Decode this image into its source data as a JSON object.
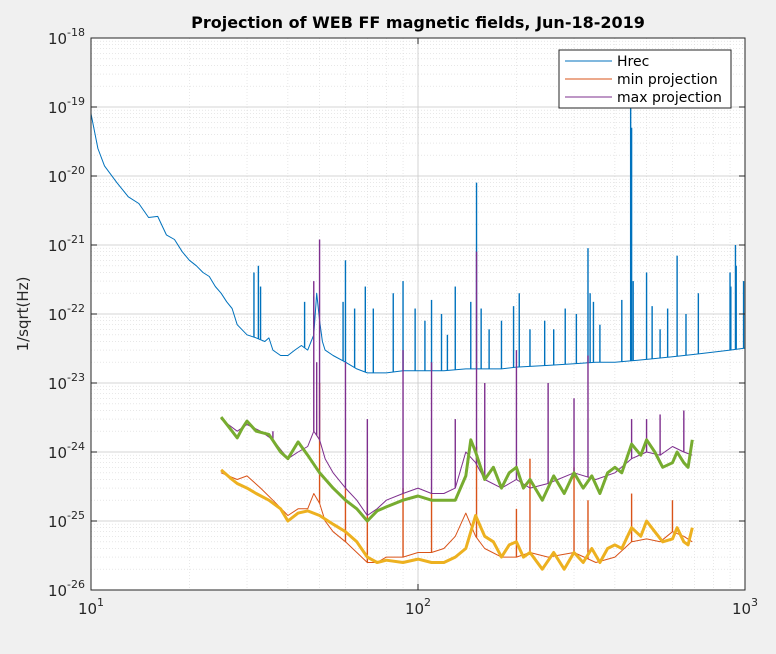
{
  "chart_data": {
    "type": "line",
    "title": "Projection of WEB FF magnetic fields, Jun-18-2019",
    "xlabel": "",
    "ylabel": "1/sqrt(Hz)",
    "x_scale": "log",
    "y_scale": "log",
    "xlim": [
      10,
      1000
    ],
    "ylim": [
      1e-26,
      1e-18
    ],
    "grid": true,
    "minor_grid": true,
    "legend_position": "top-right",
    "x_ticks": [
      {
        "value": 10,
        "base": "10",
        "exp": "1"
      },
      {
        "value": 100,
        "base": "10",
        "exp": "2"
      },
      {
        "value": 1000,
        "base": "10",
        "exp": "3"
      }
    ],
    "y_ticks": [
      {
        "value": 1e-18,
        "base": "10",
        "exp": "-18"
      },
      {
        "value": 1e-19,
        "base": "10",
        "exp": "-19"
      },
      {
        "value": 1e-20,
        "base": "10",
        "exp": "-20"
      },
      {
        "value": 1e-21,
        "base": "10",
        "exp": "-21"
      },
      {
        "value": 1e-22,
        "base": "10",
        "exp": "-22"
      },
      {
        "value": 1e-23,
        "base": "10",
        "exp": "-23"
      },
      {
        "value": 1e-24,
        "base": "10",
        "exp": "-24"
      },
      {
        "value": 1e-25,
        "base": "10",
        "exp": "-25"
      },
      {
        "value": 1e-26,
        "base": "10",
        "exp": "-26"
      }
    ],
    "series": [
      {
        "name": "Hrec",
        "color": "#0072bd",
        "width": 1,
        "in_legend": true,
        "x": [
          10,
          10.5,
          11,
          12,
          13,
          14,
          15,
          16,
          17,
          18,
          19,
          20,
          21,
          22,
          23,
          24,
          25,
          26,
          27,
          28,
          30,
          32,
          34,
          35,
          36,
          38,
          40,
          42,
          44,
          46,
          48,
          49,
          50,
          51,
          52,
          55,
          60,
          65,
          70,
          80,
          90,
          100,
          120,
          140,
          160,
          180,
          200,
          250,
          300,
          350,
          400,
          450,
          500,
          600,
          700,
          800,
          900,
          1000
        ],
        "y": [
          8e-20,
          2.5e-20,
          1.4e-20,
          8e-21,
          5e-21,
          4e-21,
          2.5e-21,
          2.6e-21,
          1.4e-21,
          1.2e-21,
          8e-22,
          6e-22,
          5e-22,
          4e-22,
          3.5e-22,
          2.5e-22,
          2e-22,
          1.5e-22,
          1.2e-22,
          7e-23,
          5e-23,
          4.5e-23,
          4e-23,
          4.5e-23,
          3e-23,
          2.5e-23,
          2.5e-23,
          3e-23,
          3.5e-23,
          3e-23,
          5e-23,
          2e-22,
          8e-23,
          4e-23,
          3e-23,
          2.5e-23,
          2e-23,
          1.6e-23,
          1.4e-23,
          1.4e-23,
          1.5e-23,
          1.5e-23,
          1.5e-23,
          1.6e-23,
          1.6e-23,
          1.6e-23,
          1.7e-23,
          1.8e-23,
          1.9e-23,
          2e-23,
          2e-23,
          2.1e-23,
          2.2e-23,
          2.4e-23,
          2.6e-23,
          2.8e-23,
          3e-23,
          3.2e-23
        ],
        "peaks": [
          [
            31.5,
            4e-22
          ],
          [
            32.5,
            5e-22
          ],
          [
            33,
            2.5e-22
          ],
          [
            45,
            1.5e-22
          ],
          [
            48,
            1.8e-22
          ],
          [
            59,
            1.5e-22
          ],
          [
            60,
            6e-22
          ],
          [
            64,
            1.2e-22
          ],
          [
            69,
            2.5e-22
          ],
          [
            73,
            1.2e-22
          ],
          [
            84,
            2e-22
          ],
          [
            90,
            3e-22
          ],
          [
            98,
            1.2e-22
          ],
          [
            105,
            8e-23
          ],
          [
            110,
            1.6e-22
          ],
          [
            118,
            1e-22
          ],
          [
            123,
            5e-23
          ],
          [
            130,
            2.5e-22
          ],
          [
            145,
            1.5e-22
          ],
          [
            151,
            8e-21
          ],
          [
            156,
            1.2e-22
          ],
          [
            165,
            6e-23
          ],
          [
            180,
            8e-23
          ],
          [
            196,
            1.3e-22
          ],
          [
            204,
            2e-22
          ],
          [
            220,
            6e-23
          ],
          [
            244,
            8e-23
          ],
          [
            260,
            6e-23
          ],
          [
            282,
            1.2e-22
          ],
          [
            305,
            1e-22
          ],
          [
            331,
            9e-22
          ],
          [
            336,
            2e-22
          ],
          [
            344,
            1.5e-22
          ],
          [
            360,
            7e-23
          ],
          [
            420,
            1.6e-22
          ],
          [
            447,
            1e-19
          ],
          [
            450,
            5e-20
          ],
          [
            455,
            3e-22
          ],
          [
            500,
            4e-22
          ],
          [
            520,
            1.3e-22
          ],
          [
            550,
            6e-23
          ],
          [
            580,
            1.2e-22
          ],
          [
            620,
            7e-22
          ],
          [
            660,
            1e-22
          ],
          [
            720,
            2e-22
          ],
          [
            900,
            4e-22
          ],
          [
            905,
            2.5e-22
          ],
          [
            935,
            1e-21
          ],
          [
            940,
            5e-22
          ],
          [
            990,
            3e-22
          ]
        ]
      },
      {
        "name": "min projection",
        "color": "#d95319",
        "width": 1,
        "in_legend": true,
        "x": [
          25,
          28,
          30,
          33,
          36,
          40,
          43,
          46,
          48,
          50,
          52,
          55,
          60,
          65,
          70,
          75,
          80,
          90,
          100,
          110,
          120,
          130,
          140,
          150,
          160,
          180,
          200,
          220,
          250,
          300,
          350,
          400,
          450,
          500,
          550,
          600,
          650,
          690
        ],
        "y": [
          5e-25,
          4e-25,
          4.5e-25,
          3e-25,
          2e-25,
          1.2e-25,
          1.5e-25,
          1.5e-25,
          2.5e-25,
          1.8e-25,
          1e-25,
          7e-26,
          5e-26,
          3.5e-26,
          2.5e-26,
          2.5e-26,
          3e-26,
          3e-26,
          3.5e-26,
          3.5e-26,
          4e-26,
          6e-26,
          1.3e-25,
          6e-26,
          4e-26,
          3e-26,
          3e-26,
          3.5e-26,
          3e-26,
          3.5e-26,
          2.5e-26,
          3e-26,
          5e-26,
          5.5e-26,
          5e-26,
          7e-26,
          6e-26,
          5e-26
        ],
        "peaks": [
          [
            50,
            1e-23
          ],
          [
            60,
            3e-25
          ],
          [
            70,
            4e-25
          ],
          [
            90,
            3e-25
          ],
          [
            110,
            2.5e-25
          ],
          [
            151,
            1.2e-24
          ],
          [
            200,
            1.5e-25
          ],
          [
            220,
            8e-25
          ],
          [
            300,
            6e-25
          ],
          [
            331,
            2e-25
          ],
          [
            450,
            2.5e-25
          ],
          [
            600,
            2e-25
          ]
        ]
      },
      {
        "name": "max projection",
        "color": "#7e2f8e",
        "width": 1,
        "in_legend": true,
        "x": [
          25,
          28,
          30,
          33,
          36,
          40,
          43,
          46,
          48,
          50,
          52,
          55,
          60,
          65,
          70,
          75,
          80,
          90,
          100,
          110,
          120,
          130,
          140,
          150,
          160,
          180,
          200,
          220,
          250,
          300,
          350,
          400,
          450,
          500,
          550,
          600,
          650,
          690
        ],
        "y": [
          3e-24,
          2e-24,
          2.5e-24,
          2e-24,
          1.5e-24,
          8e-25,
          1e-24,
          1.2e-24,
          2e-24,
          1.5e-24,
          8e-25,
          5e-25,
          3e-25,
          2e-25,
          1.2e-25,
          1.5e-25,
          2e-25,
          2.5e-25,
          3e-25,
          2.5e-25,
          2.5e-25,
          3e-25,
          1e-24,
          7e-25,
          4e-25,
          3e-25,
          4e-25,
          3e-25,
          3.5e-25,
          5e-25,
          4e-25,
          5e-25,
          8e-25,
          1e-24,
          9e-25,
          1.2e-24,
          1e-24,
          9e-25
        ],
        "peaks": [
          [
            36,
            2e-24
          ],
          [
            48,
            3e-22
          ],
          [
            49,
            2e-23
          ],
          [
            50,
            1.2e-21
          ],
          [
            60,
            2e-23
          ],
          [
            70,
            3e-24
          ],
          [
            90,
            3e-23
          ],
          [
            110,
            2e-23
          ],
          [
            130,
            3e-24
          ],
          [
            151,
            8e-22
          ],
          [
            160,
            1e-23
          ],
          [
            200,
            3e-23
          ],
          [
            250,
            1e-23
          ],
          [
            300,
            6e-24
          ],
          [
            331,
            2.5e-23
          ],
          [
            450,
            3e-24
          ],
          [
            500,
            3e-24
          ],
          [
            550,
            3.5e-24
          ],
          [
            650,
            4e-24
          ]
        ]
      },
      {
        "name": "",
        "color": "#77ac30",
        "width": 3,
        "in_legend": false,
        "x": [
          25,
          27,
          28,
          29,
          30,
          32,
          35,
          38,
          40,
          43,
          46,
          50,
          55,
          60,
          65,
          70,
          75,
          80,
          90,
          100,
          110,
          120,
          130,
          140,
          145,
          150,
          160,
          170,
          180,
          190,
          200,
          210,
          220,
          240,
          260,
          280,
          300,
          320,
          340,
          360,
          380,
          400,
          420,
          450,
          480,
          500,
          530,
          560,
          600,
          620,
          650,
          670,
          690
        ],
        "y": [
          3.2e-24,
          2e-24,
          1.6e-24,
          2.2e-24,
          2.8e-24,
          2e-24,
          1.8e-24,
          1e-24,
          8e-25,
          1.4e-24,
          9e-25,
          5e-25,
          3e-25,
          2e-25,
          1.5e-25,
          1e-25,
          1.4e-25,
          1.6e-25,
          2e-25,
          2.3e-25,
          2e-25,
          2e-25,
          2e-25,
          4.5e-25,
          1.5e-24,
          1e-24,
          4e-25,
          6e-25,
          3e-25,
          5e-25,
          6e-25,
          3e-25,
          4e-25,
          2e-25,
          4.5e-25,
          2.5e-25,
          5e-25,
          3e-25,
          4.5e-25,
          2.5e-25,
          5e-25,
          6e-25,
          5e-25,
          1.3e-24,
          9e-25,
          1.5e-24,
          1e-24,
          6e-25,
          7e-25,
          1e-24,
          7e-25,
          6e-25,
          1.5e-24
        ]
      },
      {
        "name": "",
        "color": "#edb120",
        "width": 3,
        "in_legend": false,
        "x": [
          25,
          27,
          28,
          30,
          32,
          35,
          38,
          40,
          43,
          46,
          50,
          55,
          60,
          65,
          70,
          75,
          80,
          90,
          100,
          110,
          120,
          130,
          140,
          145,
          150,
          160,
          170,
          180,
          190,
          200,
          210,
          220,
          240,
          260,
          280,
          300,
          320,
          340,
          360,
          380,
          400,
          420,
          450,
          480,
          500,
          530,
          560,
          600,
          620,
          650,
          670,
          690
        ],
        "y": [
          5.5e-25,
          4e-25,
          3.5e-25,
          3e-25,
          2.5e-25,
          2e-25,
          1.5e-25,
          1e-25,
          1.3e-25,
          1.4e-25,
          1.2e-25,
          9e-26,
          7e-26,
          5e-26,
          3e-26,
          2.5e-26,
          2.7e-26,
          2.5e-26,
          2.8e-26,
          2.5e-26,
          2.5e-26,
          3e-26,
          4e-26,
          7e-26,
          1.2e-25,
          6e-26,
          5e-26,
          3e-26,
          4.5e-26,
          5e-26,
          3e-26,
          3.5e-26,
          2e-26,
          3.5e-26,
          2e-26,
          3.5e-26,
          2.5e-26,
          4e-26,
          2.5e-26,
          4e-26,
          4.5e-26,
          4e-26,
          8e-26,
          6e-26,
          1e-25,
          7e-26,
          5e-26,
          5.5e-26,
          8e-26,
          5e-26,
          4.5e-26,
          8e-26
        ]
      }
    ]
  }
}
